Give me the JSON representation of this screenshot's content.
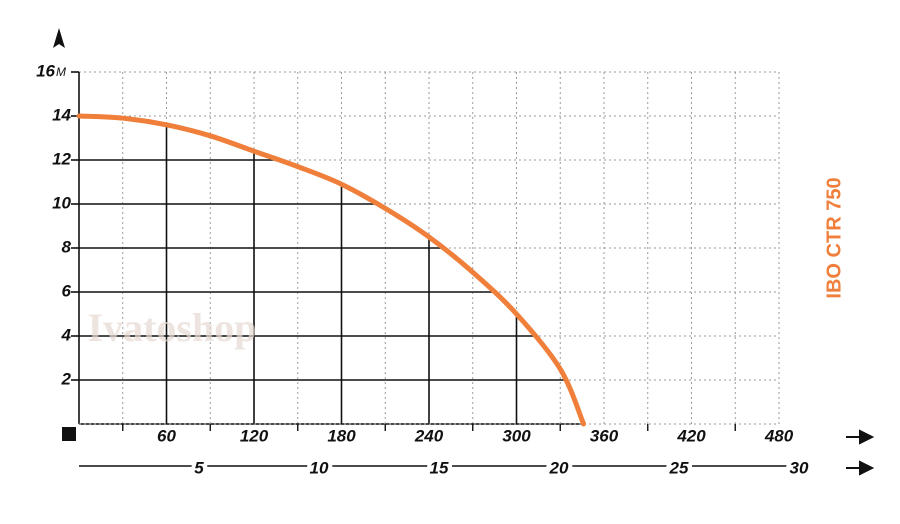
{
  "chart_data": {
    "type": "line",
    "watermark": "Ivatoshop",
    "y_unit": "M",
    "x": [
      0,
      30,
      60,
      90,
      120,
      150,
      180,
      210,
      240,
      270,
      300,
      330,
      346
    ],
    "series": [
      {
        "name": "IBO CTR 750",
        "color": "#ef7f3a",
        "values": [
          14,
          13.9,
          13.6,
          13.1,
          12.4,
          11.7,
          10.9,
          9.8,
          8.5,
          6.9,
          5,
          2.5,
          0
        ]
      }
    ],
    "xlim": [
      0,
      480
    ],
    "xticks": [
      60,
      120,
      180,
      240,
      300,
      360,
      420,
      480
    ],
    "x_minor_ticks": [
      30,
      90,
      150,
      210,
      270,
      330,
      390,
      450
    ],
    "x2lim": [
      0,
      30
    ],
    "x2ticks": [
      5,
      10,
      15,
      20,
      25,
      30
    ],
    "ylim": [
      0,
      16
    ],
    "yticks": [
      2,
      4,
      6,
      8,
      10,
      12,
      14,
      16
    ],
    "grid": true
  }
}
